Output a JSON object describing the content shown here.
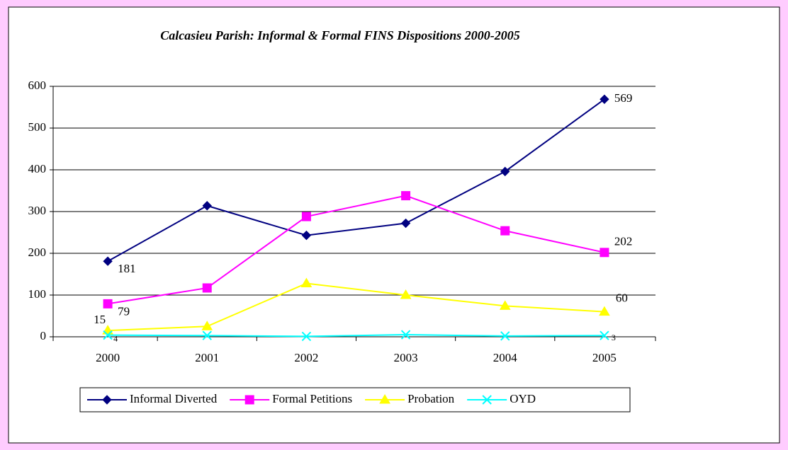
{
  "chart_data": {
    "type": "line",
    "title": "Calcasieu Parish:  Informal & Formal FINS Dispositions 2000-2005",
    "categories": [
      "2000",
      "2001",
      "2002",
      "2003",
      "2004",
      "2005"
    ],
    "series": [
      {
        "name": "Informal Diverted",
        "color": "#000080",
        "marker": "diamond",
        "values": [
          181,
          314,
          243,
          272,
          396,
          569
        ]
      },
      {
        "name": "Formal Petitions",
        "color": "#ff00ff",
        "marker": "square",
        "values": [
          79,
          117,
          288,
          338,
          254,
          202
        ]
      },
      {
        "name": "Probation",
        "color": "#ffff00",
        "marker": "triangle",
        "values": [
          15,
          25,
          128,
          100,
          74,
          60
        ]
      },
      {
        "name": "OYD",
        "color": "#00ffff",
        "marker": "x",
        "values": [
          4,
          3,
          1,
          5,
          2,
          3
        ]
      }
    ],
    "ylim": [
      0,
      600
    ],
    "yticks": [
      0,
      100,
      200,
      300,
      400,
      500,
      600
    ],
    "grid": true,
    "legend": "bottom"
  }
}
